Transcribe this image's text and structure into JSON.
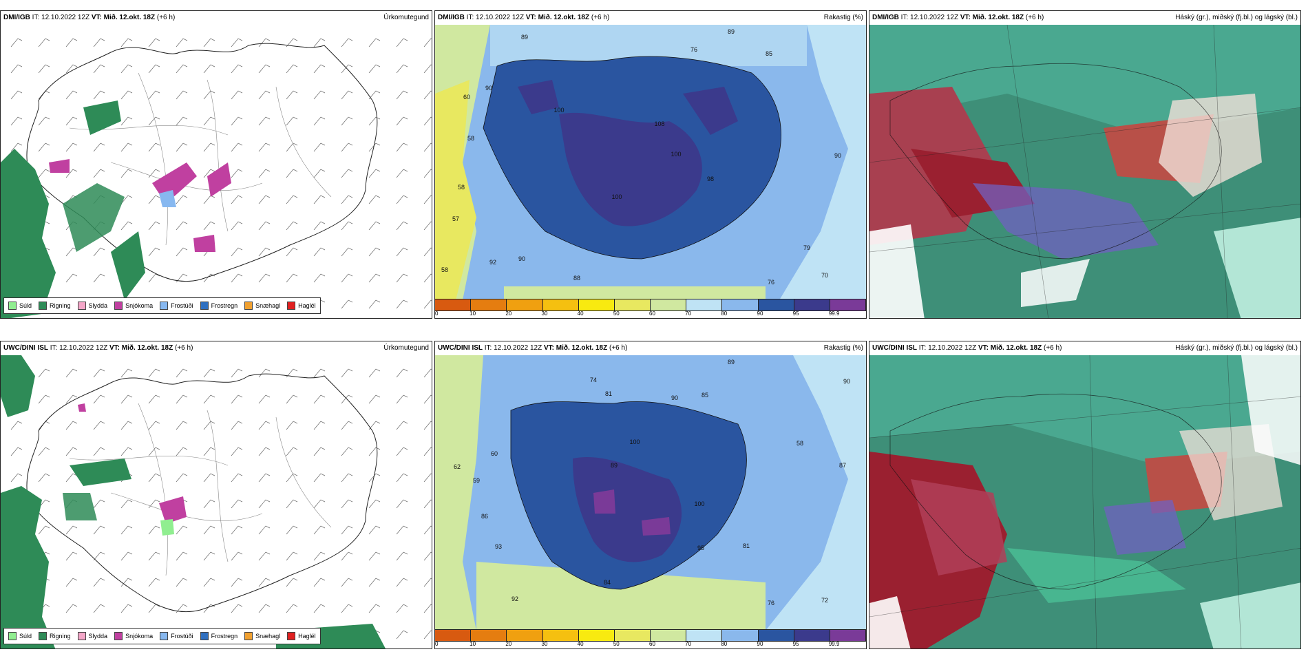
{
  "panels": {
    "top_left": {
      "model": "DMI/IGB",
      "it_label": "IT:",
      "it_value": "12.10.2022 12Z",
      "vt_label": "VT:",
      "vt_value": "Mið. 12.okt. 18Z",
      "lead": "(+6 h)",
      "title": "Úrkomutegund"
    },
    "top_mid": {
      "model": "DMI/IGB",
      "it_label": "IT:",
      "it_value": "12.10.2022 12Z",
      "vt_label": "VT:",
      "vt_value": "Mið. 12.okt. 18Z",
      "lead": "(+6 h)",
      "title": "Rakastig (%)",
      "labels": [
        "89",
        "88",
        "76",
        "89",
        "85",
        "89",
        "60",
        "90",
        "97",
        "99",
        "100",
        "100",
        "58",
        "100",
        "100",
        "108",
        "100",
        "89",
        "85",
        "100",
        "100",
        "99",
        "100",
        "98",
        "90",
        "58",
        "100",
        "92",
        "100",
        "100",
        "100",
        "93",
        "100",
        "100",
        "99",
        "100",
        "97",
        "95",
        "57",
        "58",
        "90",
        "92",
        "100",
        "100",
        "99",
        "79",
        "58",
        "99",
        "88",
        "100",
        "76",
        "70"
      ]
    },
    "top_right": {
      "model": "DMI/IGB",
      "it_label": "IT:",
      "it_value": "12.10.2022 12Z",
      "vt_label": "VT:",
      "vt_value": "Mið. 12.okt. 18Z",
      "lead": "(+6 h)",
      "title": "Háský (gr.), miðský (fj.bl.) og lágský (bl.)"
    },
    "bottom_left": {
      "model": "UWC/DINI ISL",
      "it_label": "IT:",
      "it_value": "12.10.2022 12Z",
      "vt_label": "VT:",
      "vt_value": "Mið. 12.okt. 18Z",
      "lead": "(+6 h)",
      "title": "Úrkomutegund"
    },
    "bottom_mid": {
      "model": "UWC/DINI ISL",
      "it_label": "IT:",
      "it_value": "12.10.2022 12Z",
      "vt_label": "VT:",
      "vt_value": "Mið. 12.okt. 18Z",
      "lead": "(+6 h)",
      "title": "Rakastig (%)",
      "labels": [
        "89",
        "74",
        "81",
        "90",
        "85",
        "91",
        "90",
        "92",
        "92",
        "96",
        "98",
        "58",
        "60",
        "100",
        "89",
        "100",
        "95",
        "58",
        "62",
        "96",
        "100",
        "100",
        "96",
        "100",
        "87",
        "59",
        "86",
        "100",
        "100",
        "100",
        "93",
        "95",
        "81",
        "92",
        "84",
        "100",
        "95",
        "76",
        "72"
      ]
    },
    "bottom_right": {
      "model": "UWC/DINI ISL",
      "it_label": "IT:",
      "it_value": "12.10.2022 12Z",
      "vt_label": "VT:",
      "vt_value": "Mið. 12.okt. 18Z",
      "lead": "(+6 h)",
      "title": "Háský (gr.), miðský (fj.bl.) og lágský (bl.)"
    }
  },
  "precip_legend": [
    {
      "label": "Súld",
      "color": "#90ee90"
    },
    {
      "label": "Rigning",
      "color": "#2e8b57"
    },
    {
      "label": "Slydda",
      "color": "#f4a6c8"
    },
    {
      "label": "Snjókoma",
      "color": "#c040a0"
    },
    {
      "label": "Frostúði",
      "color": "#87b8f0"
    },
    {
      "label": "Frostregn",
      "color": "#3070c0"
    },
    {
      "label": "Snæhagl",
      "color": "#f0a030"
    },
    {
      "label": "Haglél",
      "color": "#e02020"
    }
  ],
  "humidity_colorbar": {
    "colors": [
      "#d85a10",
      "#e57d10",
      "#f0a010",
      "#f5c010",
      "#f8ea10",
      "#e8e860",
      "#d0e8a0",
      "#bfe3f5",
      "#8ab8ec",
      "#2a55a0",
      "#3b3a8c",
      "#7a3a98"
    ],
    "ticks": [
      "0",
      "10",
      "20",
      "30",
      "40",
      "50",
      "60",
      "70",
      "80",
      "90",
      "95",
      "99.9"
    ]
  }
}
